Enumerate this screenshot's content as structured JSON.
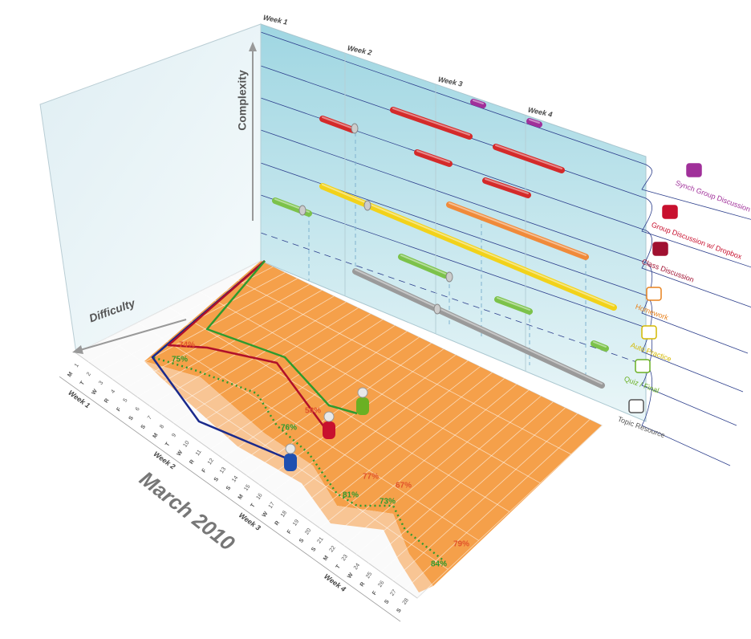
{
  "wall": {
    "weeks": [
      "Week 1",
      "Week 2",
      "Week 3",
      "Week 4"
    ],
    "axis_label": "Complexity"
  },
  "left_wall": {
    "axis_label": "Difficulty"
  },
  "legend": [
    {
      "label": "Synch Group Discussion"
    },
    {
      "label": "Group Discussion w/ Dropbox"
    },
    {
      "label": "Class Discussion"
    },
    {
      "label": "Homework"
    },
    {
      "label": "Auto Practice"
    },
    {
      "label": "Quiz / Final"
    },
    {
      "label": "Topic Resource"
    }
  ],
  "scores": [
    "74%",
    "75%",
    "58%",
    "76%",
    "77%",
    "67%",
    "81%",
    "73%",
    "79%",
    "84%"
  ],
  "floor": {
    "month": "March 2010",
    "weeks": [
      "Week 1",
      "Week 2",
      "Week 3",
      "Week 4"
    ],
    "days": [
      {
        "letter": "M",
        "number": "1"
      },
      {
        "letter": "T",
        "number": "2"
      },
      {
        "letter": "W",
        "number": "3"
      },
      {
        "letter": "R",
        "number": "4"
      },
      {
        "letter": "F",
        "number": "5"
      },
      {
        "letter": "S",
        "number": "6"
      },
      {
        "letter": "S",
        "number": "7"
      },
      {
        "letter": "M",
        "number": "8"
      },
      {
        "letter": "T",
        "number": "9"
      },
      {
        "letter": "W",
        "number": "10"
      },
      {
        "letter": "R",
        "number": "11"
      },
      {
        "letter": "F",
        "number": "12"
      },
      {
        "letter": "S",
        "number": "13"
      },
      {
        "letter": "S",
        "number": "14"
      },
      {
        "letter": "M",
        "number": "15"
      },
      {
        "letter": "T",
        "number": "16"
      },
      {
        "letter": "W",
        "number": "17"
      },
      {
        "letter": "R",
        "number": "18"
      },
      {
        "letter": "F",
        "number": "19"
      },
      {
        "letter": "S",
        "number": "20"
      },
      {
        "letter": "S",
        "number": "21"
      },
      {
        "letter": "M",
        "number": "22"
      },
      {
        "letter": "T",
        "number": "23"
      },
      {
        "letter": "W",
        "number": "24"
      },
      {
        "letter": "R",
        "number": "25"
      },
      {
        "letter": "F",
        "number": "26"
      },
      {
        "letter": "S",
        "number": "27"
      },
      {
        "letter": "S",
        "number": "28"
      }
    ]
  }
}
